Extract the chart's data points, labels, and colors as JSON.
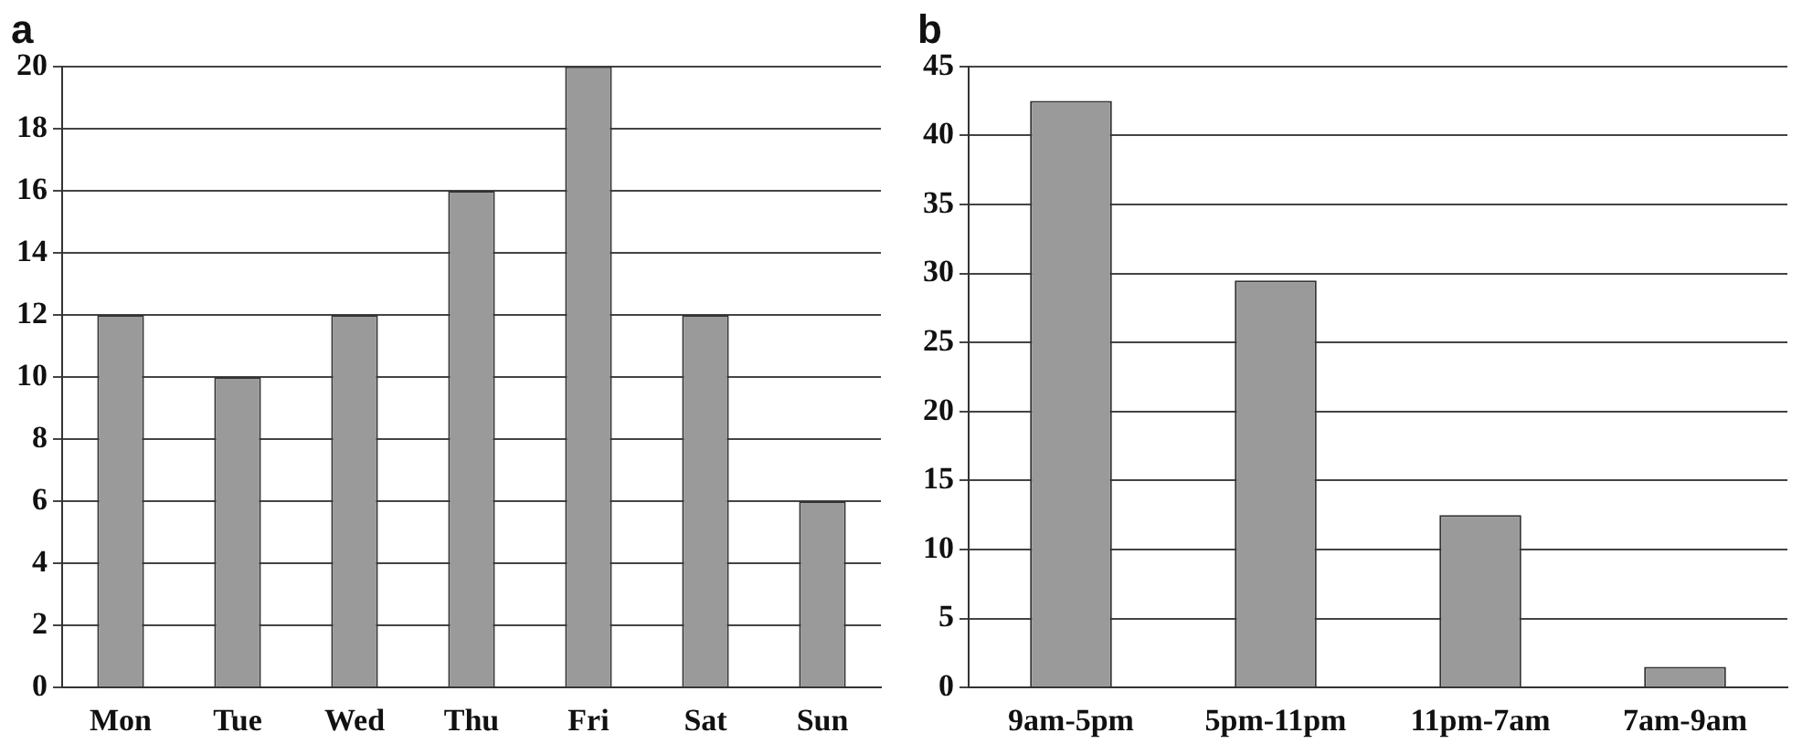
{
  "chart_data": [
    {
      "type": "bar",
      "title": "a",
      "categories": [
        "Mon",
        "Tue",
        "Wed",
        "Thu",
        "Fri",
        "Sat",
        "Sun"
      ],
      "values": [
        12,
        10,
        12,
        16,
        20,
        12,
        6
      ],
      "color": "#9a9a9a",
      "ylim": [
        0,
        20
      ],
      "yticks": [
        0,
        2,
        4,
        6,
        8,
        10,
        12,
        14,
        16,
        18,
        20
      ],
      "grid": "y"
    },
    {
      "type": "bar",
      "title": "b",
      "categories": [
        "9am-5pm",
        "5pm-11pm",
        "11pm-7am",
        "7am-9am"
      ],
      "values": [
        42.5,
        29.5,
        12.5,
        1.5
      ],
      "color": "#9a9a9a",
      "ylim": [
        0,
        45
      ],
      "yticks": [
        0,
        5,
        10,
        15,
        20,
        25,
        30,
        35,
        40,
        45
      ],
      "grid": "y"
    }
  ]
}
